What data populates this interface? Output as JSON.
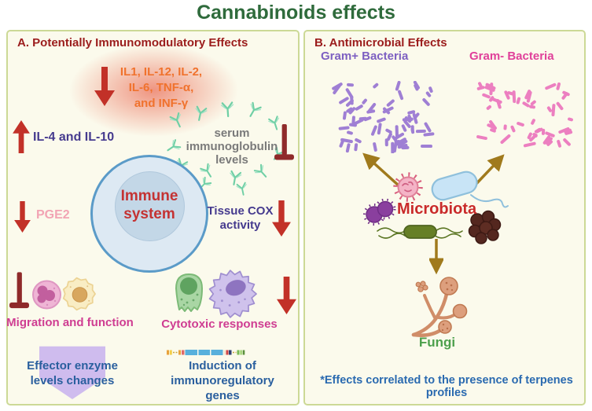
{
  "title": "Cannabinoids effects",
  "panel_a": {
    "header": "A. Potentially Immunomodulatory Effects",
    "cytokines_down": [
      "IL1, IL-12, IL-2,",
      "IL-6, TNF-α,",
      "and INF-γ"
    ],
    "il_up": "IL-4 and IL-10",
    "serum": [
      "serum",
      "immunoglobulin",
      "levels"
    ],
    "immune": [
      "Immune",
      "system"
    ],
    "pge2": "PGE2",
    "tissue_cox": [
      "Tissue COX",
      "activity"
    ],
    "migration": "Migration and function",
    "cytotoxic": "Cytotoxic responses",
    "effector": [
      "Effector enzyme",
      "levels changes"
    ],
    "induction": [
      "Induction of",
      "immunoregulatory genes"
    ]
  },
  "panel_b": {
    "header": "B. Antimicrobial Effects",
    "gram_positive": "Gram+ Bacteria",
    "gram_negative": "Gram- Bacteria",
    "microbiota": "Microbiota",
    "fungi": "Fungi",
    "footnote": "*Effects correlated to the presence of  terpenes profiles"
  },
  "colors": {
    "title_green": "#2f6b3c",
    "panel_bg": "#fbfaec",
    "panel_border": "#ccd996",
    "header_red": "#9b1c1c",
    "cytokine_orange": "#f0722d",
    "arrow_red": "#c23128",
    "inhibition_dark_red": "#8f2a2a",
    "indigo_text": "#453a8e",
    "pge2_pink": "#f2a4b4",
    "immune_red": "#c43333",
    "magenta_label": "#cf3d92",
    "deep_blue_text": "#2a5f9e",
    "gram_pos_purple": "#7d5fc1",
    "gram_neg_pink": "#e0409a",
    "microbiota_red": "#c92a2a",
    "fungi_green": "#4da04d",
    "footnote_blue": "#2a6ab0",
    "antibody_teal": "#6fcfa5",
    "gold_arrow": "#a07a1c",
    "gram_pos_rod": "#9f7fd4",
    "gram_neg_rod": "#ec7fc0"
  },
  "icons": {
    "down-arrow-icon": "↓",
    "up-arrow-icon": "↑",
    "inhibition-bar-icon": "⊥",
    "antibody-icon": "Y",
    "gene-construct-icon": "segmented-bar",
    "virus-icon": "spiked-circle",
    "curved-bacterium-icon": "capsule+flagellum",
    "diplococci-icon": "two-cocci",
    "cocci-cluster-icon": "cluster",
    "rod-bacterium-icon": "capsule+flagella",
    "fungal-hyphae-icon": "branching-hyphae"
  }
}
